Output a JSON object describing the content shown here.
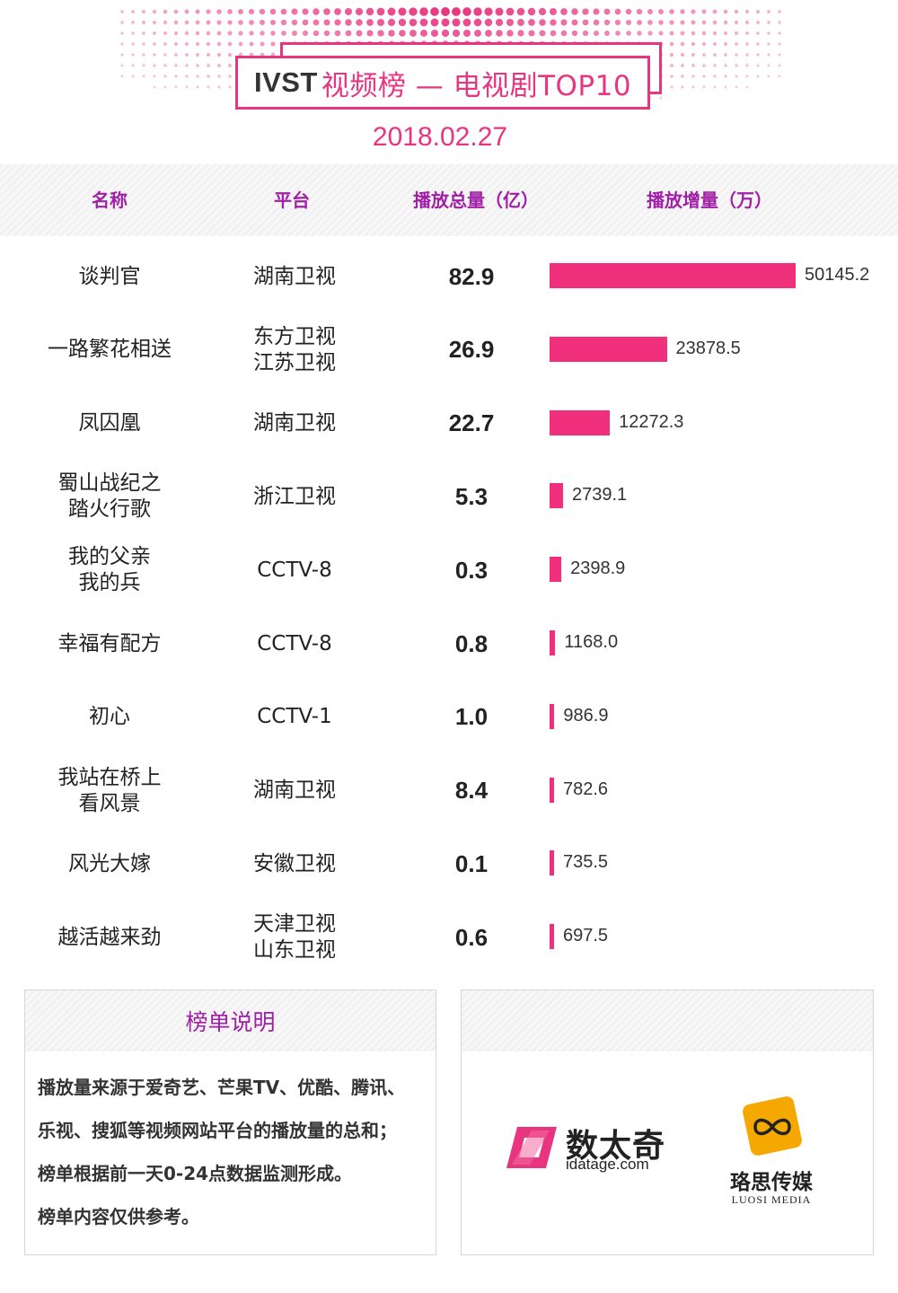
{
  "header": {
    "brand": "IVST",
    "title_rest": "视频榜 — 电视剧TOP10",
    "date": "2018.02.27"
  },
  "table": {
    "headers": [
      "名称",
      "平台",
      "播放总量（亿）",
      "播放增量（万）"
    ]
  },
  "chart_data": {
    "type": "bar",
    "orientation": "horizontal",
    "categories": [
      "谈判官",
      "一路繁花相送",
      "凤囚凰",
      "蜀山战纪之踏火行歌",
      "我的父亲我的兵",
      "幸福有配方",
      "初心",
      "我站在桥上看风景",
      "风光大嫁",
      "越活越来劲"
    ],
    "rows": [
      {
        "name": [
          "谈判官"
        ],
        "platform": [
          "湖南卫视"
        ],
        "total": "82.9",
        "increment": 50145.2,
        "increment_label": "50145.2"
      },
      {
        "name": [
          "一路繁花相送"
        ],
        "platform": [
          "东方卫视",
          "江苏卫视"
        ],
        "total": "26.9",
        "increment": 23878.5,
        "increment_label": "23878.5"
      },
      {
        "name": [
          "凤囚凰"
        ],
        "platform": [
          "湖南卫视"
        ],
        "total": "22.7",
        "increment": 12272.3,
        "increment_label": "12272.3"
      },
      {
        "name": [
          "蜀山战纪之",
          "踏火行歌"
        ],
        "platform": [
          "浙江卫视"
        ],
        "total": "5.3",
        "increment": 2739.1,
        "increment_label": "2739.1"
      },
      {
        "name": [
          "我的父亲",
          "我的兵"
        ],
        "platform": [
          "CCTV-8"
        ],
        "total": "0.3",
        "increment": 2398.9,
        "increment_label": "2398.9"
      },
      {
        "name": [
          "幸福有配方"
        ],
        "platform": [
          "CCTV-8"
        ],
        "total": "0.8",
        "increment": 1168.0,
        "increment_label": "1168.0"
      },
      {
        "name": [
          "初心"
        ],
        "platform": [
          "CCTV-1"
        ],
        "total": "1.0",
        "increment": 986.9,
        "increment_label": "986.9"
      },
      {
        "name": [
          "我站在桥上",
          "看风景"
        ],
        "platform": [
          "湖南卫视"
        ],
        "total": "8.4",
        "increment": 782.6,
        "increment_label": "782.6"
      },
      {
        "name": [
          "风光大嫁"
        ],
        "platform": [
          "安徽卫视"
        ],
        "total": "0.1",
        "increment": 735.5,
        "increment_label": "735.5"
      },
      {
        "name": [
          "越活越来劲"
        ],
        "platform": [
          "天津卫视",
          "山东卫视"
        ],
        "total": "0.6",
        "increment": 697.5,
        "increment_label": "697.5"
      }
    ],
    "bar_color": "#f0307d",
    "xlim": [
      0,
      50145.2
    ]
  },
  "notes": {
    "title": "榜单说明",
    "lines": [
      "播放量来源于爱奇艺、芒果TV、优酷、腾讯、",
      "乐视、搜狐等视频网站平台的播放量的总和；",
      "榜单根据前一天0-24点数据监测形成。",
      "榜单内容仅供参考。"
    ]
  },
  "logos": {
    "idatage_name": "数太奇",
    "idatage_url": "idatage.com",
    "luosi_name": "珞思传媒",
    "luosi_en": "LUOSI MEDIA"
  },
  "colors": {
    "accent": "#e8357f",
    "header_text": "#a01fa6",
    "logo_orange": "#f5a800"
  }
}
